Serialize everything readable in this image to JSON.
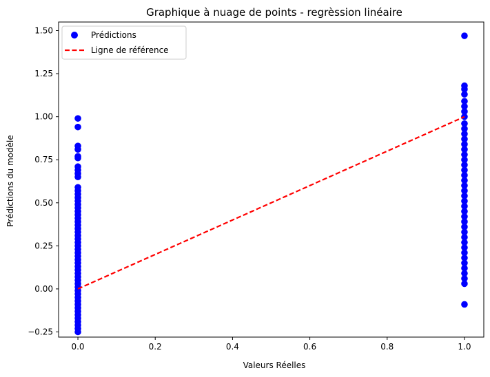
{
  "chart_data": {
    "type": "scatter",
    "title": "Graphique à nuage de points - regrèssion linéaire",
    "xlabel": "Valeurs Réelles",
    "ylabel": "Prédictions du modèle",
    "xlim": [
      -0.05,
      1.05
    ],
    "ylim": [
      -0.28,
      1.55
    ],
    "x_ticks": [
      0.0,
      0.2,
      0.4,
      0.6,
      0.8,
      1.0
    ],
    "x_tick_labels": [
      "0.0",
      "0.2",
      "0.4",
      "0.6",
      "0.8",
      "1.0"
    ],
    "y_ticks": [
      -0.25,
      0.0,
      0.25,
      0.5,
      0.75,
      1.0,
      1.25,
      1.5
    ],
    "y_tick_labels": [
      "−0.25",
      "0.00",
      "0.25",
      "0.50",
      "0.75",
      "1.00",
      "1.25",
      "1.50"
    ],
    "grid": false,
    "legend_position": "top-left",
    "series": [
      {
        "name": "Prédictions",
        "kind": "scatter",
        "color": "#0000ff",
        "points": [
          [
            0,
            0.99
          ],
          [
            0,
            0.94
          ],
          [
            0,
            0.83
          ],
          [
            0,
            0.81
          ],
          [
            0,
            0.77
          ],
          [
            0,
            0.76
          ],
          [
            0,
            0.71
          ],
          [
            0,
            0.69
          ],
          [
            0,
            0.67
          ],
          [
            0,
            0.65
          ],
          [
            0,
            0.59
          ],
          [
            0,
            0.57
          ],
          [
            0,
            0.55
          ],
          [
            0,
            0.53
          ],
          [
            0,
            0.51
          ],
          [
            0,
            0.49
          ],
          [
            0,
            0.47
          ],
          [
            0,
            0.45
          ],
          [
            0,
            0.43
          ],
          [
            0,
            0.41
          ],
          [
            0,
            0.39
          ],
          [
            0,
            0.37
          ],
          [
            0,
            0.35
          ],
          [
            0,
            0.33
          ],
          [
            0,
            0.31
          ],
          [
            0,
            0.29
          ],
          [
            0,
            0.27
          ],
          [
            0,
            0.25
          ],
          [
            0,
            0.23
          ],
          [
            0,
            0.21
          ],
          [
            0,
            0.19
          ],
          [
            0,
            0.17
          ],
          [
            0,
            0.15
          ],
          [
            0,
            0.13
          ],
          [
            0,
            0.11
          ],
          [
            0,
            0.09
          ],
          [
            0,
            0.07
          ],
          [
            0,
            0.05
          ],
          [
            0,
            0.03
          ],
          [
            0,
            0.01
          ],
          [
            0,
            -0.01
          ],
          [
            0,
            -0.03
          ],
          [
            0,
            -0.05
          ],
          [
            0,
            -0.07
          ],
          [
            0,
            -0.09
          ],
          [
            0,
            -0.11
          ],
          [
            0,
            -0.13
          ],
          [
            0,
            -0.15
          ],
          [
            0,
            -0.17
          ],
          [
            0,
            -0.19
          ],
          [
            0,
            -0.21
          ],
          [
            0,
            -0.23
          ],
          [
            0,
            -0.25
          ],
          [
            1,
            1.47
          ],
          [
            1,
            1.18
          ],
          [
            1,
            1.16
          ],
          [
            1,
            1.13
          ],
          [
            1,
            1.09
          ],
          [
            1,
            1.06
          ],
          [
            1,
            1.03
          ],
          [
            1,
            1.0
          ],
          [
            1,
            0.96
          ],
          [
            1,
            0.93
          ],
          [
            1,
            0.9
          ],
          [
            1,
            0.87
          ],
          [
            1,
            0.84
          ],
          [
            1,
            0.81
          ],
          [
            1,
            0.78
          ],
          [
            1,
            0.75
          ],
          [
            1,
            0.72
          ],
          [
            1,
            0.69
          ],
          [
            1,
            0.66
          ],
          [
            1,
            0.63
          ],
          [
            1,
            0.6
          ],
          [
            1,
            0.57
          ],
          [
            1,
            0.54
          ],
          [
            1,
            0.51
          ],
          [
            1,
            0.48
          ],
          [
            1,
            0.45
          ],
          [
            1,
            0.42
          ],
          [
            1,
            0.39
          ],
          [
            1,
            0.36
          ],
          [
            1,
            0.33
          ],
          [
            1,
            0.3
          ],
          [
            1,
            0.27
          ],
          [
            1,
            0.24
          ],
          [
            1,
            0.21
          ],
          [
            1,
            0.18
          ],
          [
            1,
            0.15
          ],
          [
            1,
            0.12
          ],
          [
            1,
            0.09
          ],
          [
            1,
            0.06
          ],
          [
            1,
            0.03
          ],
          [
            1,
            -0.09
          ]
        ]
      },
      {
        "name": "Ligne de référence",
        "kind": "line",
        "style": "dashed",
        "color": "#ff0000",
        "x": [
          0,
          1
        ],
        "y": [
          0,
          1
        ]
      }
    ]
  }
}
